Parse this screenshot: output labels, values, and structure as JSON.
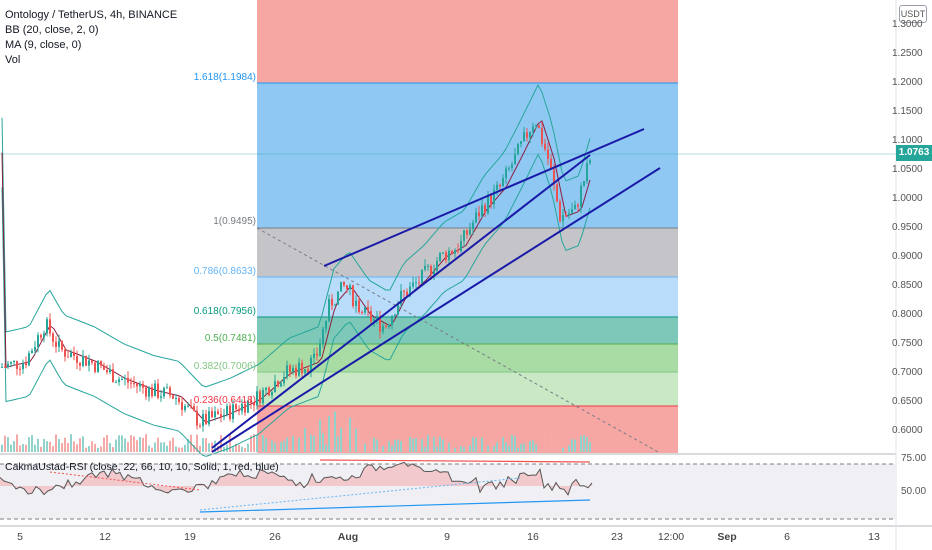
{
  "legend": {
    "symbol": "Ontology / TetherUS, 4h, BINANCE",
    "bb": "BB (20, close, 2, 0)",
    "ma": "MA (9, close, 0)",
    "vol": "Vol"
  },
  "price_axis": {
    "currency": "USDT",
    "labels": [
      "1.3000",
      "1.2500",
      "1.2000",
      "1.1500",
      "1.1000",
      "1.0500",
      "1.0000",
      "0.9500",
      "0.9000",
      "0.8500",
      "0.8000",
      "0.7500",
      "0.7000",
      "0.6500",
      "0.6000"
    ],
    "current_price": "1.0763"
  },
  "fib_levels": [
    {
      "label": "1.618(1.1984)",
      "color": "#2196f3"
    },
    {
      "label": "1(0.9495)",
      "color": "#787b86"
    },
    {
      "label": "0.786(0.8633)",
      "color": "#64b5f6"
    },
    {
      "label": "0.618(0.7956)",
      "color": "#089981"
    },
    {
      "label": "0.5(0.7481)",
      "color": "#4caf50"
    },
    {
      "label": "0.382(0.7006)",
      "color": "#81c784"
    },
    {
      "label": "0.236(0.6418)",
      "color": "#f23645"
    }
  ],
  "rsi": {
    "label": "CakmaUstad-RSI (close, 22, 66, 10, 10, Solid, 1, red, blue)",
    "levels": [
      "75.00",
      "50.00"
    ]
  },
  "time_axis": [
    {
      "label": "5",
      "bold": false
    },
    {
      "label": "12",
      "bold": false
    },
    {
      "label": "19",
      "bold": false
    },
    {
      "label": "26",
      "bold": false
    },
    {
      "label": "Aug",
      "bold": true
    },
    {
      "label": "9",
      "bold": false
    },
    {
      "label": "16",
      "bold": false
    },
    {
      "label": "23",
      "bold": false
    },
    {
      "label": "12:00",
      "bold": false
    },
    {
      "label": "Sep",
      "bold": true
    },
    {
      "label": "6",
      "bold": false
    },
    {
      "label": "13",
      "bold": false
    }
  ],
  "colors": {
    "up": "#26a69a",
    "down": "#ef5350",
    "trend": "#1a1aa8"
  }
}
